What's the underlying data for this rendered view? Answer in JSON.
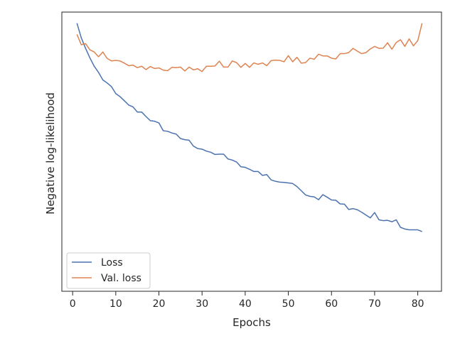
{
  "chart_data": {
    "type": "line",
    "title": "",
    "xlabel": "Epochs",
    "ylabel": "Negative log-likelihood",
    "xlim": [
      -2.5,
      85.5
    ],
    "ylim": [
      0.0,
      1.0
    ],
    "x_ticks": [
      0,
      10,
      20,
      30,
      40,
      50,
      60,
      70,
      80
    ],
    "y_ticks_shown": false,
    "grid": false,
    "legend_position": "lower-left",
    "x": [
      1,
      2,
      3,
      4,
      5,
      6,
      7,
      8,
      9,
      10,
      11,
      12,
      13,
      14,
      15,
      16,
      17,
      18,
      19,
      20,
      21,
      22,
      23,
      24,
      25,
      26,
      27,
      28,
      29,
      30,
      31,
      32,
      33,
      34,
      35,
      36,
      37,
      38,
      39,
      40,
      41,
      42,
      43,
      44,
      45,
      46,
      47,
      48,
      49,
      50,
      51,
      52,
      53,
      54,
      55,
      56,
      57,
      58,
      59,
      60,
      61,
      62,
      63,
      64,
      65,
      66,
      67,
      68,
      69,
      70,
      71,
      72,
      73,
      74,
      75,
      76,
      77,
      78,
      79,
      80,
      81
    ],
    "series": [
      {
        "name": "Loss",
        "color": "#4c72b0",
        "values": [
          0.96,
          0.908,
          0.87,
          0.836,
          0.806,
          0.784,
          0.757,
          0.746,
          0.733,
          0.708,
          0.697,
          0.682,
          0.667,
          0.66,
          0.642,
          0.642,
          0.626,
          0.611,
          0.609,
          0.603,
          0.575,
          0.573,
          0.567,
          0.563,
          0.547,
          0.543,
          0.541,
          0.52,
          0.511,
          0.509,
          0.502,
          0.498,
          0.49,
          0.491,
          0.491,
          0.474,
          0.47,
          0.463,
          0.446,
          0.444,
          0.437,
          0.429,
          0.429,
          0.415,
          0.418,
          0.399,
          0.394,
          0.391,
          0.39,
          0.388,
          0.386,
          0.375,
          0.36,
          0.345,
          0.34,
          0.338,
          0.328,
          0.346,
          0.337,
          0.327,
          0.326,
          0.313,
          0.312,
          0.293,
          0.296,
          0.292,
          0.283,
          0.273,
          0.263,
          0.282,
          0.256,
          0.253,
          0.254,
          0.249,
          0.256,
          0.229,
          0.223,
          0.22,
          0.22,
          0.22,
          0.214
        ]
      },
      {
        "name": "Val. loss",
        "color": "#dd8452",
        "values": [
          0.92,
          0.883,
          0.887,
          0.865,
          0.857,
          0.84,
          0.857,
          0.834,
          0.825,
          0.827,
          0.825,
          0.817,
          0.808,
          0.81,
          0.801,
          0.806,
          0.794,
          0.805,
          0.798,
          0.8,
          0.792,
          0.79,
          0.802,
          0.801,
          0.803,
          0.789,
          0.803,
          0.793,
          0.797,
          0.787,
          0.806,
          0.806,
          0.807,
          0.824,
          0.803,
          0.803,
          0.825,
          0.819,
          0.802,
          0.816,
          0.802,
          0.818,
          0.813,
          0.818,
          0.808,
          0.826,
          0.828,
          0.827,
          0.822,
          0.844,
          0.822,
          0.838,
          0.817,
          0.819,
          0.835,
          0.831,
          0.849,
          0.843,
          0.843,
          0.835,
          0.832,
          0.851,
          0.851,
          0.855,
          0.87,
          0.86,
          0.851,
          0.855,
          0.868,
          0.877,
          0.87,
          0.871,
          0.89,
          0.867,
          0.891,
          0.901,
          0.877,
          0.904,
          0.879,
          0.898,
          0.96
        ]
      }
    ]
  }
}
